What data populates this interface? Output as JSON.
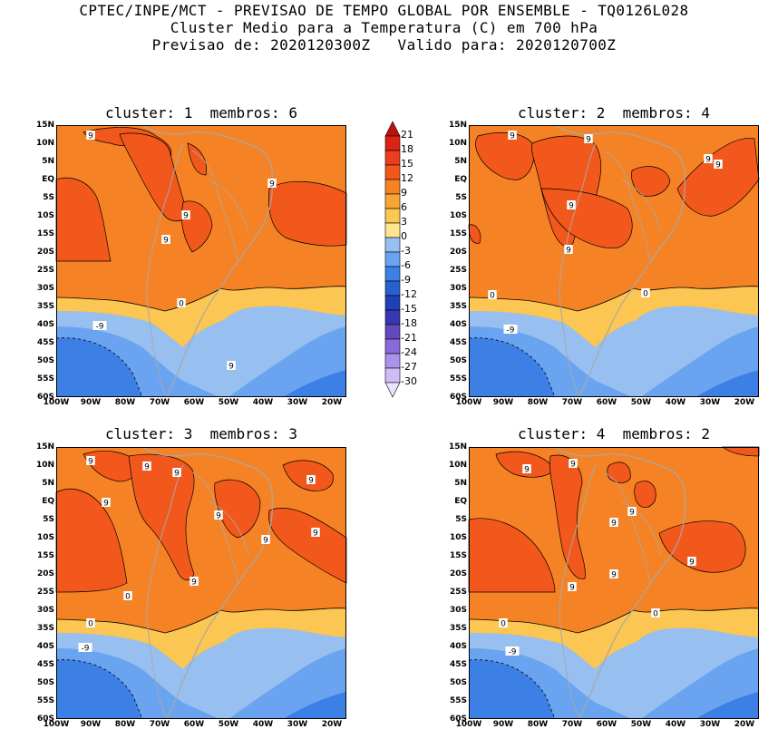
{
  "title": {
    "line1": "CPTEC/INPE/MCT - PREVISAO DE TEMPO GLOBAL POR ENSEMBLE - TQ0126L028",
    "line2": "Cluster Medio para a Temperatura (C) em 700 hPa",
    "line3": "Previsao de: 2020120300Z   Valido para: 2020120700Z"
  },
  "panels": [
    {
      "title": "cluster: 1  membros: 6"
    },
    {
      "title": "cluster: 2  membros: 4"
    },
    {
      "title": "cluster: 3  membros: 3"
    },
    {
      "title": "cluster: 4  membros: 2"
    }
  ],
  "lat_labels": [
    "15N",
    "10N",
    "5N",
    "EQ",
    "5S",
    "10S",
    "15S",
    "20S",
    "25S",
    "30S",
    "35S",
    "40S",
    "45S",
    "50S",
    "55S",
    "60S"
  ],
  "lon_labels": [
    "100W",
    "90W",
    "80W",
    "70W",
    "60W",
    "50W",
    "40W",
    "30W",
    "20W"
  ],
  "colorbar": {
    "labels": [
      "21",
      "18",
      "15",
      "12",
      "9",
      "6",
      "3",
      "0",
      "-3",
      "-6",
      "-9",
      "-12",
      "-15",
      "-18",
      "-21",
      "-24",
      "-27",
      "-30"
    ],
    "colors": [
      "#c0100e",
      "#dc2414",
      "#ee3c1e",
      "#f2581c",
      "#f58326",
      "#f6a633",
      "#fbc652",
      "#fde68e",
      "#97c0f0",
      "#6aa4f0",
      "#3c80e6",
      "#2a5fd0",
      "#2040b8",
      "#3a35b0",
      "#6448c0",
      "#8a6ad8",
      "#ab92ea",
      "#cdbcf5",
      "#ebe2fb"
    ]
  },
  "contour_labels": {
    "p1": [
      "9",
      "9",
      "9",
      "9",
      "9",
      "0",
      "-9"
    ],
    "p2": [
      "9",
      "9",
      "9",
      "9",
      "9",
      "9",
      "0",
      "0",
      "-9"
    ],
    "p3": [
      "9",
      "9",
      "9",
      "9",
      "9",
      "9",
      "9",
      "9",
      "9",
      "0",
      "0",
      "-9"
    ],
    "p4": [
      "9",
      "9",
      "9",
      "9",
      "9",
      "9",
      "9",
      "0",
      "0",
      "-9"
    ]
  }
}
